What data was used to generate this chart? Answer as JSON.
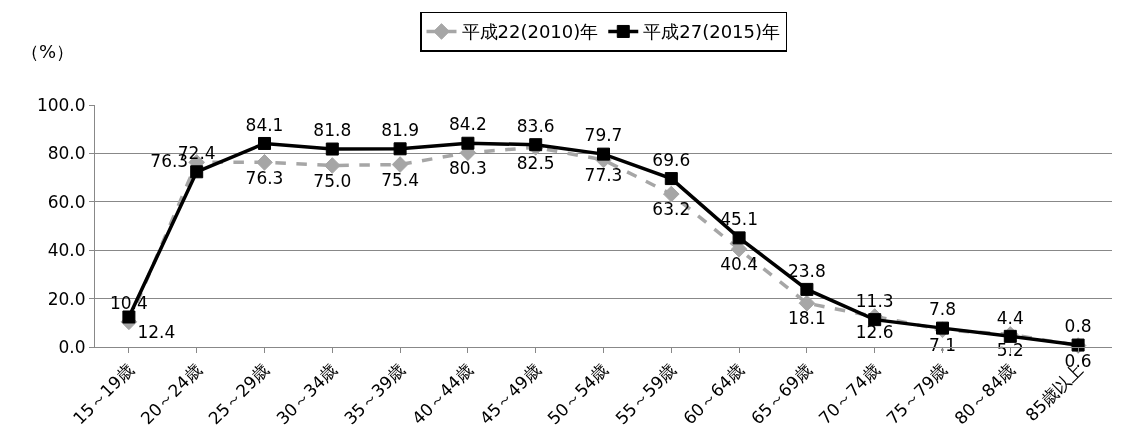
{
  "chart_data": {
    "type": "line",
    "ylabel": "（%）",
    "categories": [
      "15～19歳",
      "20～24歳",
      "25～29歳",
      "30～34歳",
      "35～39歳",
      "40～44歳",
      "45～49歳",
      "50～54歳",
      "55～59歳",
      "60～64歳",
      "65～69歳",
      "70～74歳",
      "75～79歳",
      "80～84歳",
      "85歳以上"
    ],
    "series": [
      {
        "name": "平成22(2010)年",
        "color": "#a6a6a6",
        "marker": "diamond",
        "line_style": "dashed",
        "values": [
          10.4,
          76.3,
          76.3,
          75.0,
          75.4,
          80.3,
          82.5,
          77.3,
          63.2,
          40.4,
          18.1,
          12.6,
          7.1,
          5.2,
          0.6
        ],
        "value_labels": [
          "10.4",
          "76.3",
          "76.3",
          "75.0",
          "75.4",
          "80.3",
          "82.5",
          "77.3",
          "63.2",
          "40.4",
          "18.1",
          "12.6",
          "7.1",
          "5.2",
          "0.6"
        ]
      },
      {
        "name": "平成27(2015)年",
        "color": "#000000",
        "marker": "square",
        "line_style": "solid",
        "values": [
          12.4,
          72.4,
          84.1,
          81.8,
          81.9,
          84.2,
          83.6,
          79.7,
          69.6,
          45.1,
          23.8,
          11.3,
          7.8,
          4.4,
          0.8
        ],
        "value_labels": [
          "12.4",
          "72.4",
          "84.1",
          "81.8",
          "81.9",
          "84.2",
          "83.6",
          "79.7",
          "69.6",
          "45.1",
          "23.8",
          "11.3",
          "7.8",
          "4.4",
          "0.8"
        ]
      }
    ],
    "ylim": [
      0,
      100
    ],
    "yticks": [
      {
        "value": 0,
        "label": "0.0"
      },
      {
        "value": 20,
        "label": "20.0"
      },
      {
        "value": 40,
        "label": "40.0"
      },
      {
        "value": 60,
        "label": "60.0"
      },
      {
        "value": 80,
        "label": "80.0"
      },
      {
        "value": 100,
        "label": "100.0"
      }
    ],
    "grid": "y",
    "legend": "top"
  }
}
